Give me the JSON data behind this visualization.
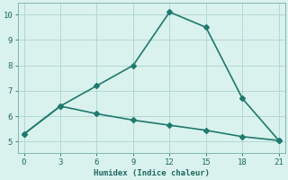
{
  "xlabel": "Humidex (Indice chaleur)",
  "line1_x": [
    0,
    3,
    6,
    9,
    12,
    15,
    18,
    21
  ],
  "line1_y": [
    5.3,
    6.4,
    7.2,
    8.0,
    10.1,
    9.5,
    6.7,
    5.05
  ],
  "line2_x": [
    0,
    3,
    6,
    9,
    12,
    15,
    18,
    21
  ],
  "line2_y": [
    5.3,
    6.4,
    6.1,
    5.85,
    5.65,
    5.45,
    5.2,
    5.05
  ],
  "line_color": "#1e7a6e",
  "bg_color": "#daf2ee",
  "grid_color": "#b2d8d2",
  "xlim": [
    -0.5,
    21.5
  ],
  "ylim": [
    4.55,
    10.45
  ],
  "xticks": [
    0,
    3,
    6,
    9,
    12,
    15,
    18,
    21
  ],
  "yticks": [
    5,
    6,
    7,
    8,
    9,
    10
  ],
  "marker": "D",
  "marker_size": 3,
  "linewidth": 1.2
}
